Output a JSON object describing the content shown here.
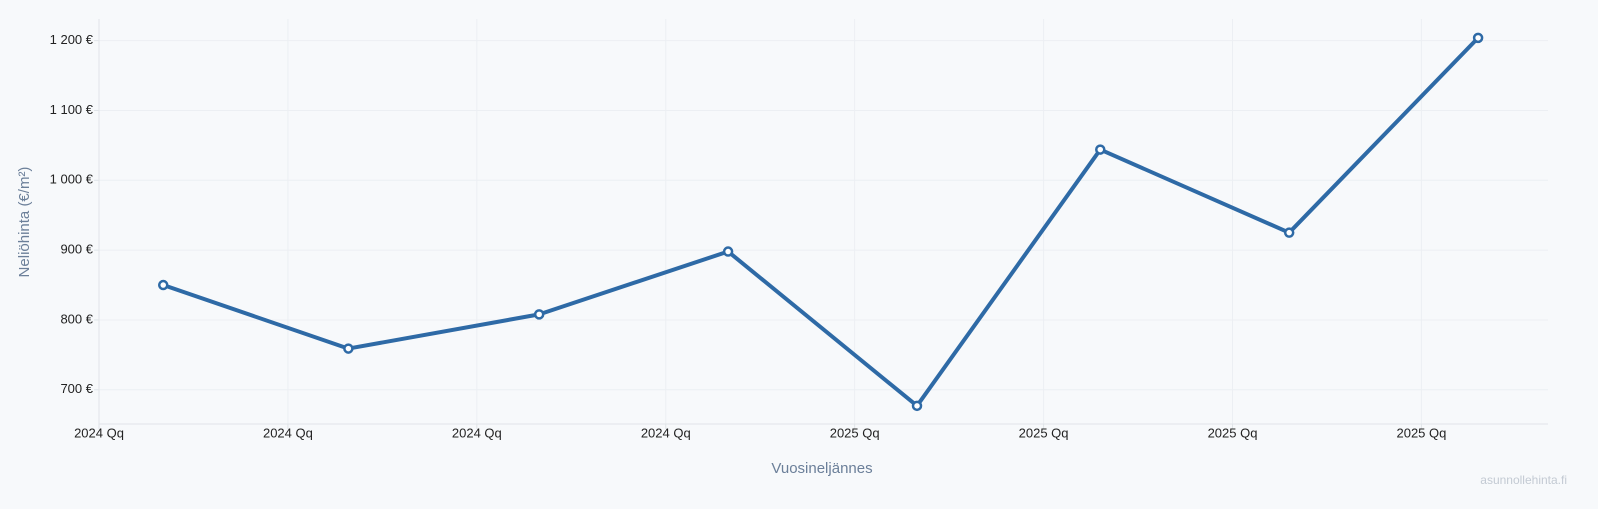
{
  "chart_data": {
    "type": "line",
    "x_label": "Vuosineljännes",
    "y_label": "Neliöhinta (€/m²)",
    "watermark": "asunnollehinta.fi",
    "x": [
      0.34,
      1.32,
      2.33,
      3.33,
      4.33,
      5.3,
      6.3,
      7.3
    ],
    "series": [
      {
        "color": "#2e6aa6",
        "values": [
          850,
          759,
          808,
          898,
          677,
          1044,
          925,
          1204
        ]
      }
    ],
    "xlim": [
      0,
      7.67
    ],
    "xticks": [
      {
        "value": 0,
        "label": "2024 Qq"
      },
      {
        "value": 1,
        "label": "2024 Qq"
      },
      {
        "value": 2,
        "label": "2024 Qq"
      },
      {
        "value": 3,
        "label": "2024 Qq"
      },
      {
        "value": 4,
        "label": "2025 Qq"
      },
      {
        "value": 5,
        "label": "2025 Qq"
      },
      {
        "value": 6,
        "label": "2025 Qq"
      },
      {
        "value": 7,
        "label": "2025 Qq"
      }
    ],
    "ylim": [
      651,
      1231
    ],
    "yticks": [
      {
        "value": 700,
        "label": "700 €"
      },
      {
        "value": 800,
        "label": "800 €"
      },
      {
        "value": 900,
        "label": "900 €"
      },
      {
        "value": 1000,
        "label": "1 000 €"
      },
      {
        "value": 1100,
        "label": "1 100 €"
      },
      {
        "value": 1200,
        "label": "1 200 €"
      }
    ],
    "grid": true
  }
}
